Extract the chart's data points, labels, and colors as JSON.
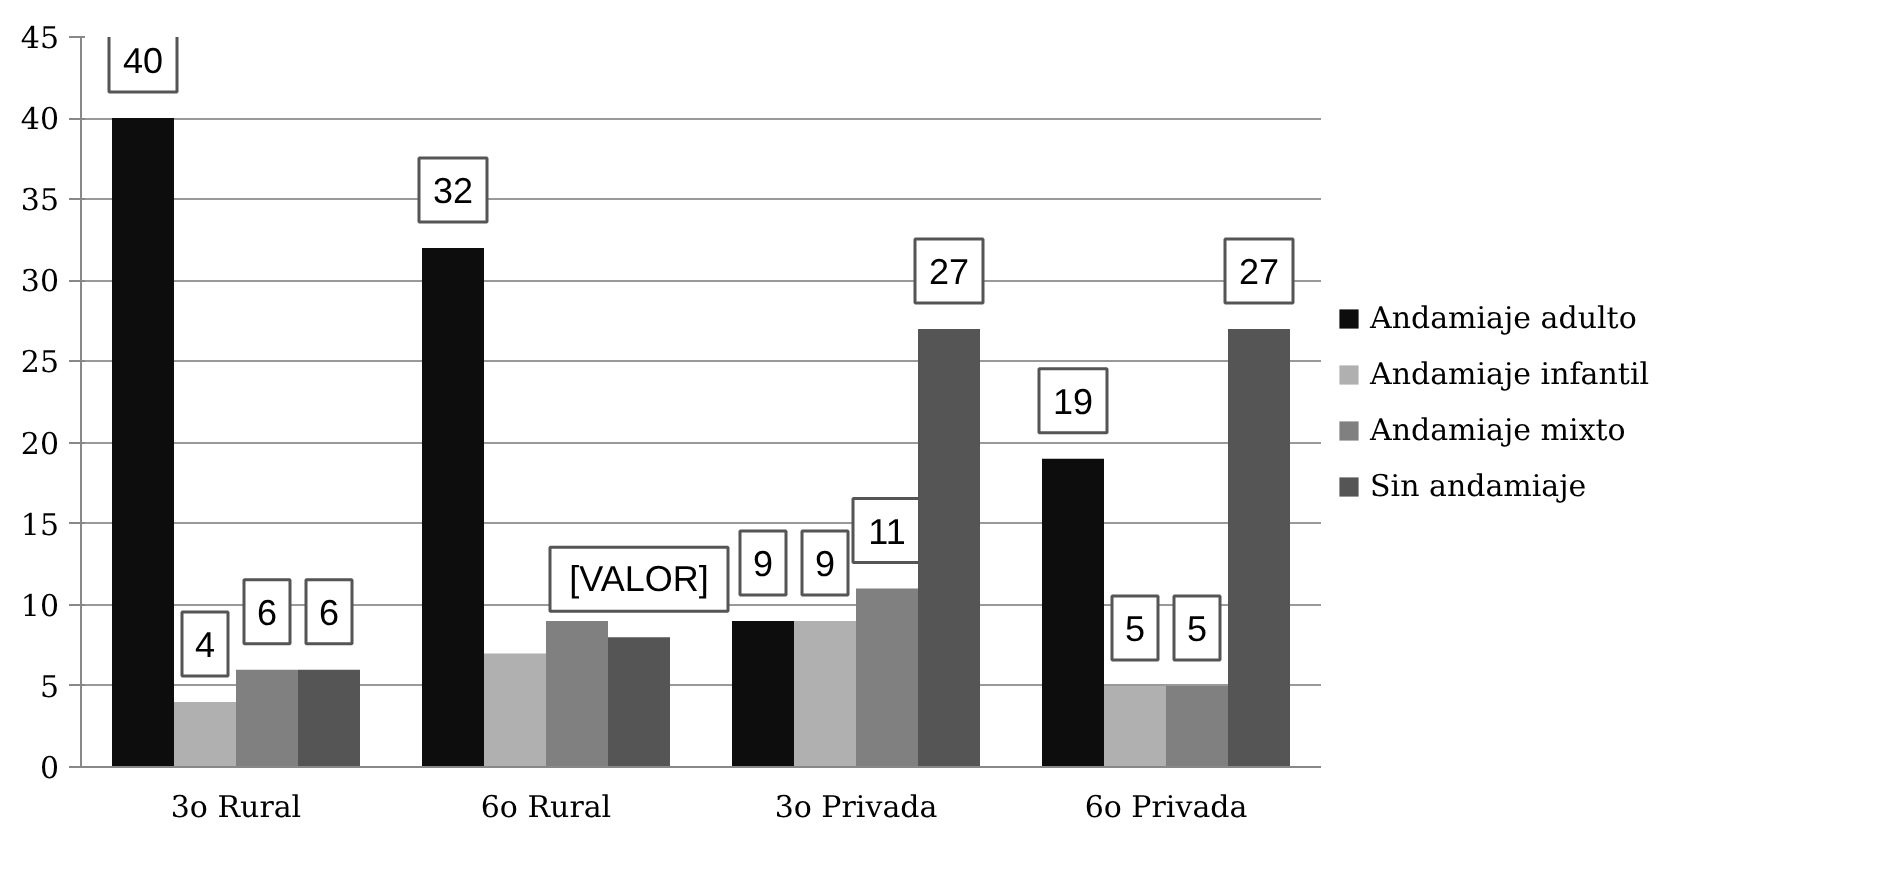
{
  "chart_data": {
    "type": "bar",
    "categories": [
      "3o Rural",
      "6o Rural",
      "3o Privada",
      "6o Privada"
    ],
    "series": [
      {
        "name": "Andamiaje adulto",
        "color": "#0d0d0d",
        "values": [
          40,
          32,
          9,
          19
        ],
        "value_labels": [
          "40",
          "32",
          "9",
          "19"
        ]
      },
      {
        "name": "Andamiaje infantil",
        "color": "#b0b0b0",
        "values": [
          4,
          7,
          9,
          5
        ],
        "value_labels": [
          "4",
          null,
          "9",
          "5"
        ]
      },
      {
        "name": "Andamiaje mixto",
        "color": "#808080",
        "values": [
          6,
          9,
          11,
          5
        ],
        "value_labels": [
          "6",
          null,
          "11",
          "5"
        ]
      },
      {
        "name": "Sin andamiaje",
        "color": "#555555",
        "values": [
          6,
          8,
          27,
          27
        ],
        "value_labels": [
          "6",
          "[VALOR]",
          "27",
          "27"
        ]
      }
    ],
    "ylim": [
      0,
      45
    ],
    "yticks": [
      0,
      5,
      10,
      15,
      20,
      25,
      30,
      35,
      40,
      45
    ],
    "grid": "y",
    "legend": "right"
  }
}
